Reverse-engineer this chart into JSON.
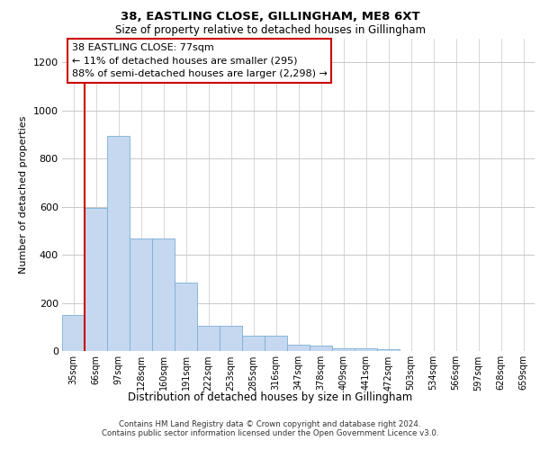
{
  "title": "38, EASTLING CLOSE, GILLINGHAM, ME8 6XT",
  "subtitle": "Size of property relative to detached houses in Gillingham",
  "xlabel": "Distribution of detached houses by size in Gillingham",
  "ylabel": "Number of detached properties",
  "bar_color": "#c5d8f0",
  "bar_edge_color": "#7bafd4",
  "background_color": "#ffffff",
  "grid_color": "#c8c8c8",
  "annotation_box_color": "#cc0000",
  "vline_color": "#cc0000",
  "annotation_text": "38 EASTLING CLOSE: 77sqm\n← 11% of detached houses are smaller (295)\n88% of semi-detached houses are larger (2,298) →",
  "property_size": 77,
  "categories": [
    "35sqm",
    "66sqm",
    "97sqm",
    "128sqm",
    "160sqm",
    "191sqm",
    "222sqm",
    "253sqm",
    "285sqm",
    "316sqm",
    "347sqm",
    "378sqm",
    "409sqm",
    "441sqm",
    "472sqm",
    "503sqm",
    "534sqm",
    "566sqm",
    "597sqm",
    "628sqm",
    "659sqm"
  ],
  "values": [
    150,
    595,
    893,
    468,
    468,
    283,
    105,
    105,
    62,
    62,
    25,
    22,
    10,
    10,
    8,
    0,
    0,
    0,
    0,
    0,
    0
  ],
  "ylim": [
    0,
    1300
  ],
  "yticks": [
    0,
    200,
    400,
    600,
    800,
    1000,
    1200
  ],
  "footer_line1": "Contains HM Land Registry data © Crown copyright and database right 2024.",
  "footer_line2": "Contains public sector information licensed under the Open Government Licence v3.0."
}
